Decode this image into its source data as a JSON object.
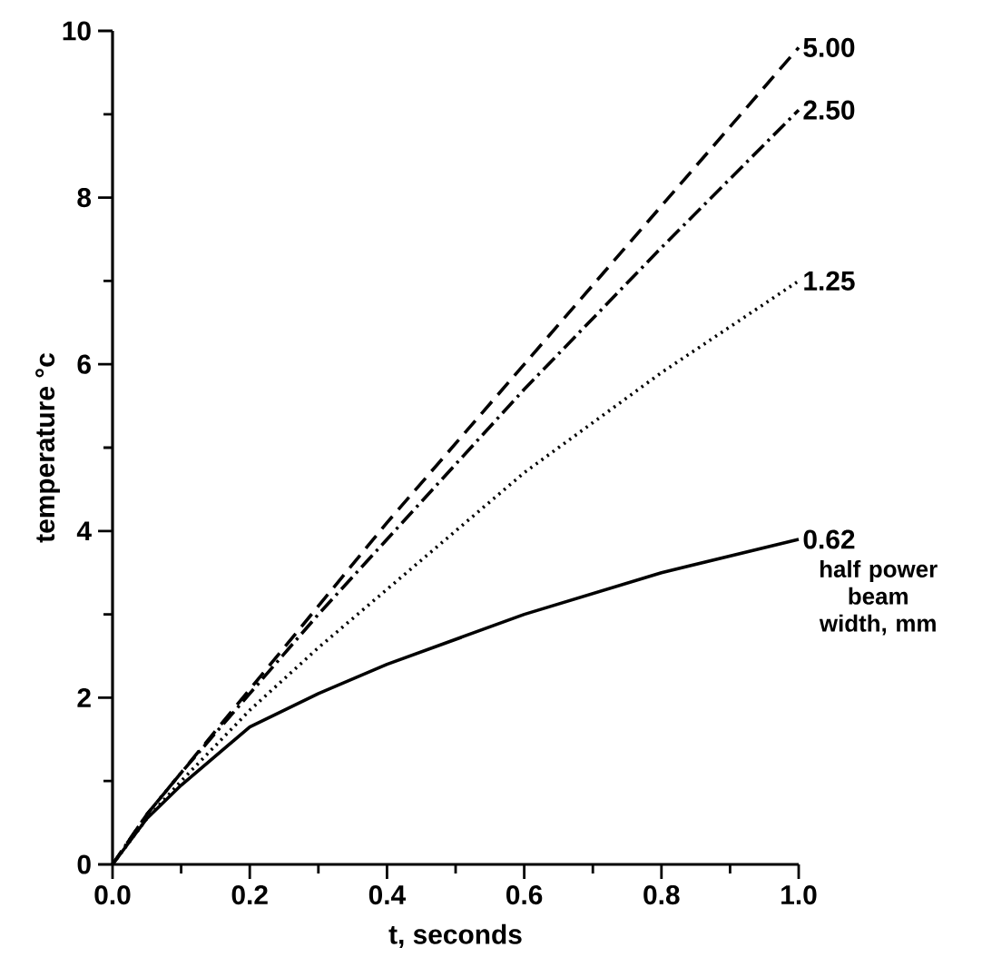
{
  "chart_data": {
    "type": "line",
    "xlabel": "t, seconds",
    "ylabel": "temperature °c",
    "xlim": [
      0,
      1.0
    ],
    "ylim": [
      0,
      10
    ],
    "xticks": [
      {
        "value": 0,
        "label": "0.0"
      },
      0.2,
      0.4,
      0.6,
      0.8,
      {
        "value": 1.0,
        "label": "1.0"
      }
    ],
    "yticks": [
      0,
      2,
      4,
      6,
      8,
      10
    ],
    "grid": false,
    "marker": "none",
    "x": [
      0,
      0.05,
      0.1,
      0.2,
      0.3,
      0.4,
      0.6,
      0.8,
      1.0
    ],
    "series": [
      {
        "name": "5.00",
        "color": "#000000",
        "line_style": "dashed",
        "values": [
          0,
          0.6,
          1.1,
          2.1,
          3.1,
          4.1,
          6.0,
          7.9,
          9.8
        ]
      },
      {
        "name": "2.50",
        "color": "#000000",
        "line_style": "dashdot",
        "values": [
          0,
          0.6,
          1.1,
          2.05,
          3.0,
          3.9,
          5.7,
          7.4,
          9.05
        ]
      },
      {
        "name": "1.25",
        "color": "#000000",
        "line_style": "dotted",
        "values": [
          0,
          0.55,
          1.0,
          1.85,
          2.6,
          3.3,
          4.7,
          5.9,
          7.0
        ]
      },
      {
        "name": "0.62",
        "color": "#000000",
        "line_style": "solid",
        "values": [
          0,
          0.55,
          0.95,
          1.65,
          2.05,
          2.4,
          3.0,
          3.5,
          3.9
        ]
      }
    ],
    "annotations": [
      "half power beam width, mm"
    ]
  }
}
